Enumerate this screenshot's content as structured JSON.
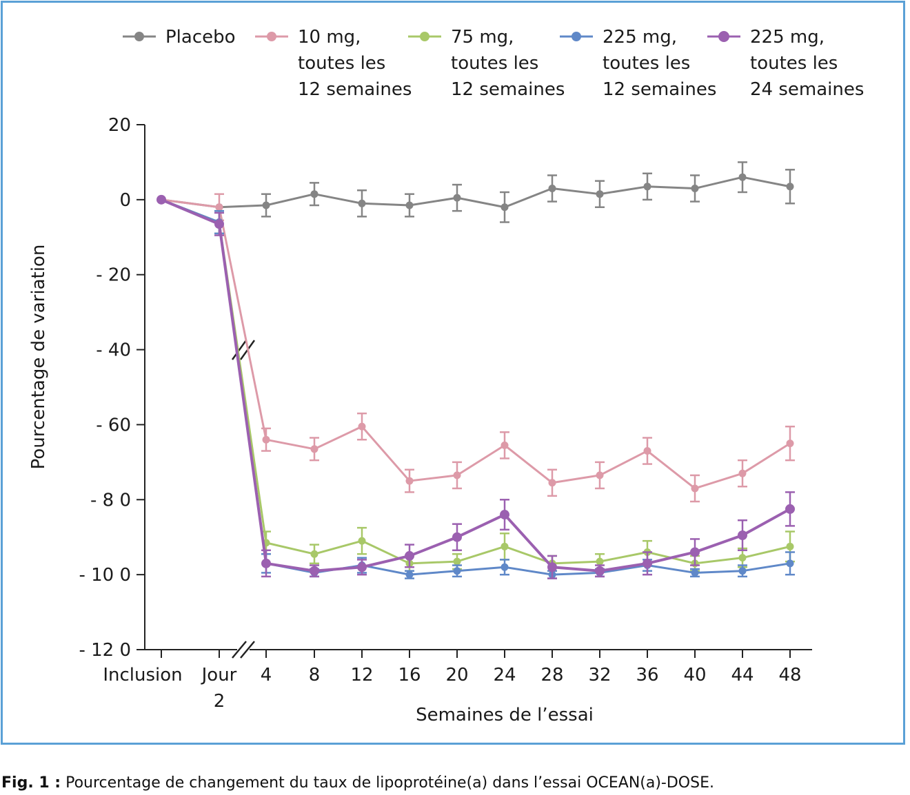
{
  "caption": {
    "label": "Fig. 1 :",
    "text": "Pourcentage de changement du taux de lipoprotéine(a) dans l’essai OCEAN(a)-DOSE."
  },
  "chart_data": {
    "type": "line",
    "xlabel": "Semaines de l’essai",
    "ylabel": "Pourcentage de variation",
    "ylim": [
      -120,
      20
    ],
    "yticks": [
      20,
      0,
      -20,
      -40,
      -60,
      -80,
      -100,
      -120
    ],
    "ytick_labels": [
      "20",
      "0",
      "- 20",
      "- 40",
      "- 60",
      "- 8 0",
      "- 10 0",
      "- 12 0"
    ],
    "categories": [
      "Inclusion",
      "Jour 2",
      "4",
      "8",
      "12",
      "16",
      "20",
      "24",
      "28",
      "32",
      "36",
      "40",
      "44",
      "48"
    ],
    "category_labels": [
      [
        "Inclusion"
      ],
      [
        "Jour",
        "2"
      ],
      [
        "4"
      ],
      [
        "8"
      ],
      [
        "12"
      ],
      [
        "16"
      ],
      [
        "20"
      ],
      [
        "24"
      ],
      [
        "28"
      ],
      [
        "32"
      ],
      [
        "36"
      ],
      [
        "40"
      ],
      [
        "44"
      ],
      [
        "48"
      ]
    ],
    "axis_break": "between Jour 2 and 4",
    "legend_position": "top",
    "series": [
      {
        "name": "Placebo",
        "legend_lines": [
          "Placebo"
        ],
        "color": "#858585",
        "values": [
          0,
          -2,
          -1.5,
          1.5,
          -1,
          -1.5,
          0.5,
          -2,
          3,
          1.5,
          3.5,
          3,
          6,
          3.5
        ],
        "errors": [
          0,
          0,
          3,
          3,
          3.5,
          3,
          3.5,
          4,
          3.5,
          3.5,
          3.5,
          3.5,
          4,
          4.5
        ]
      },
      {
        "name": "10 mg, toutes les 12 semaines",
        "legend_lines": [
          "10 mg,",
          "toutes les",
          "12 semaines"
        ],
        "color": "#dd9aa8",
        "values": [
          0,
          -2,
          -64,
          -66.5,
          -60.5,
          -75,
          -73.5,
          -65.5,
          -75.5,
          -73.5,
          -67,
          -77,
          -73,
          -65
        ],
        "errors": [
          0,
          3.5,
          3,
          3,
          3.5,
          3,
          3.5,
          3.5,
          3.5,
          3.5,
          3.5,
          3.5,
          3.5,
          4.5
        ]
      },
      {
        "name": "75 mg, toutes les 12 semaines",
        "legend_lines": [
          "75 mg,",
          "toutes les",
          "12 semaines"
        ],
        "color": "#a8c868",
        "values": [
          0,
          -6,
          -91.5,
          -94.5,
          -91,
          -97,
          -96.5,
          -92.5,
          -97,
          -96.5,
          -94,
          -97,
          -95.5,
          -92.5
        ],
        "errors": [
          0,
          3,
          3,
          2.5,
          3.5,
          2,
          2,
          3.5,
          2,
          2,
          3,
          2,
          2.5,
          4
        ]
      },
      {
        "name": "225 mg, toutes les 12 semaines",
        "legend_lines": [
          "225 mg,",
          "toutes les",
          "12 semaines"
        ],
        "color": "#5f88c8",
        "values": [
          0,
          -6,
          -97,
          -99.5,
          -97.5,
          -100,
          -99,
          -98,
          -100,
          -99.5,
          -97.5,
          -99.5,
          -99,
          -97
        ],
        "errors": [
          0,
          3,
          2.5,
          1,
          2,
          1,
          1.5,
          2,
          1,
          1,
          1.5,
          1,
          1.5,
          3
        ]
      },
      {
        "name": "225 mg, toutes les 24 semaines",
        "legend_lines": [
          "225 mg,",
          "toutes les",
          "24 semaines"
        ],
        "color": "#9b60b0",
        "values": [
          0,
          -6.5,
          -97,
          -99,
          -98,
          -95,
          -90,
          -84,
          -98,
          -99,
          -97,
          -94,
          -89.5,
          -82.5
        ],
        "errors": [
          0,
          3,
          3.5,
          1.5,
          2,
          3,
          3.5,
          4,
          3,
          1.5,
          3,
          3.5,
          4,
          4.5
        ]
      }
    ]
  }
}
